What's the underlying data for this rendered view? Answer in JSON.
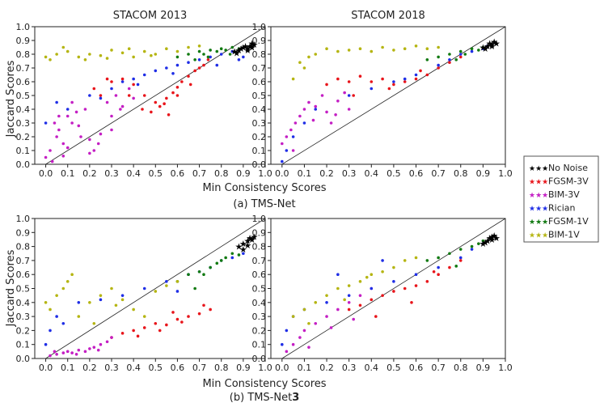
{
  "figure": {
    "caption_a": "(a) TMS-Net",
    "caption_b_prefix": "(b) TMS-Net",
    "caption_b_suffix": "3"
  },
  "legend": {
    "items": [
      {
        "label": "No Noise",
        "color": "#000000"
      },
      {
        "label": "FGSM-3V",
        "color": "#e8151b"
      },
      {
        "label": "BIM-3V",
        "color": "#c41fc4"
      },
      {
        "label": "Rician",
        "color": "#1f2ee6"
      },
      {
        "label": "FGSM-1V",
        "color": "#127a12"
      },
      {
        "label": "BIM-1V",
        "color": "#b5b512"
      }
    ]
  },
  "chart_data": [
    {
      "type": "scatter",
      "panel": "a-left",
      "title": "STACOM 2013",
      "xlabel": "",
      "ylabel": "Jaccard  Scores",
      "xlim": [
        -0.05,
        1.0
      ],
      "ylim": [
        0.0,
        1.0
      ],
      "xticks": [
        "0.0",
        "0.1",
        "0.2",
        "0.3",
        "0.4",
        "0.5",
        "0.6",
        "0.7",
        "0.8",
        "0.9",
        "1.0"
      ],
      "yticks": [
        "0.0",
        "0.1",
        "0.2",
        "0.3",
        "0.4",
        "0.5",
        "0.6",
        "0.7",
        "0.8",
        "0.9",
        "1.0"
      ],
      "diagonal": true,
      "series": [
        {
          "name": "No Noise",
          "x": [
            0.86,
            0.88,
            0.9,
            0.91,
            0.92,
            0.93,
            0.94,
            0.95,
            0.89,
            0.92,
            0.94,
            0.87
          ],
          "y": [
            0.82,
            0.83,
            0.85,
            0.86,
            0.84,
            0.86,
            0.88,
            0.87,
            0.84,
            0.83,
            0.85,
            0.81
          ]
        },
        {
          "name": "FGSM-3V",
          "x": [
            0.22,
            0.3,
            0.35,
            0.4,
            0.45,
            0.5,
            0.52,
            0.55,
            0.58,
            0.6,
            0.62,
            0.65,
            0.68,
            0.7,
            0.72,
            0.48,
            0.44,
            0.38,
            0.28,
            0.25,
            0.56,
            0.6,
            0.66,
            0.74,
            0.54
          ],
          "y": [
            0.55,
            0.6,
            0.62,
            0.58,
            0.5,
            0.45,
            0.42,
            0.48,
            0.52,
            0.56,
            0.6,
            0.64,
            0.68,
            0.7,
            0.72,
            0.38,
            0.4,
            0.5,
            0.62,
            0.5,
            0.36,
            0.5,
            0.58,
            0.76,
            0.44
          ]
        },
        {
          "name": "BIM-3V",
          "x": [
            0.0,
            0.02,
            0.03,
            0.05,
            0.06,
            0.08,
            0.1,
            0.12,
            0.15,
            0.18,
            0.2,
            0.22,
            0.25,
            0.28,
            0.3,
            0.32,
            0.35,
            0.38,
            0.4,
            0.04,
            0.1,
            0.14,
            0.2,
            0.24,
            0.3,
            0.34,
            0.12,
            0.08,
            0.16,
            0.06
          ],
          "y": [
            0.05,
            0.1,
            0.02,
            0.2,
            0.25,
            0.15,
            0.35,
            0.3,
            0.28,
            0.4,
            0.18,
            0.1,
            0.22,
            0.45,
            0.35,
            0.5,
            0.42,
            0.55,
            0.48,
            0.3,
            0.12,
            0.38,
            0.08,
            0.15,
            0.25,
            0.4,
            0.45,
            0.06,
            0.2,
            0.35
          ]
        },
        {
          "name": "Rician",
          "x": [
            0.0,
            0.05,
            0.1,
            0.2,
            0.3,
            0.35,
            0.4,
            0.45,
            0.5,
            0.55,
            0.6,
            0.65,
            0.7,
            0.75,
            0.8,
            0.85,
            0.9,
            0.25,
            0.42,
            0.58,
            0.78,
            0.88
          ],
          "y": [
            0.3,
            0.45,
            0.4,
            0.5,
            0.55,
            0.6,
            0.62,
            0.65,
            0.68,
            0.7,
            0.72,
            0.74,
            0.76,
            0.78,
            0.8,
            0.82,
            0.78,
            0.48,
            0.58,
            0.66,
            0.72,
            0.76
          ]
        },
        {
          "name": "FGSM-1V",
          "x": [
            0.6,
            0.65,
            0.7,
            0.72,
            0.75,
            0.78,
            0.8,
            0.82,
            0.85,
            0.88,
            0.68,
            0.74,
            0.84
          ],
          "y": [
            0.78,
            0.8,
            0.82,
            0.8,
            0.83,
            0.82,
            0.84,
            0.83,
            0.85,
            0.84,
            0.76,
            0.78,
            0.8
          ]
        },
        {
          "name": "BIM-1V",
          "x": [
            0.0,
            0.02,
            0.05,
            0.1,
            0.15,
            0.2,
            0.25,
            0.3,
            0.35,
            0.4,
            0.45,
            0.5,
            0.55,
            0.6,
            0.65,
            0.7,
            0.08,
            0.18,
            0.28,
            0.38,
            0.48
          ],
          "y": [
            0.78,
            0.76,
            0.8,
            0.82,
            0.78,
            0.8,
            0.79,
            0.83,
            0.81,
            0.78,
            0.82,
            0.8,
            0.84,
            0.82,
            0.85,
            0.86,
            0.85,
            0.76,
            0.77,
            0.84,
            0.79
          ]
        }
      ]
    },
    {
      "type": "scatter",
      "panel": "a-right",
      "title": "STACOM 2018",
      "xlim": [
        -0.05,
        1.0
      ],
      "ylim": [
        0.0,
        1.0
      ],
      "xticks": [
        "0.0",
        "0.1",
        "0.2",
        "0.3",
        "0.4",
        "0.5",
        "0.6",
        "0.7",
        "0.8",
        "0.9",
        "1.0"
      ],
      "yticks": [
        "0.0",
        "0.1",
        "0.2",
        "0.3",
        "0.4",
        "0.5",
        "0.6",
        "0.7",
        "0.8",
        "0.9",
        "1.0"
      ],
      "diagonal": true,
      "series": [
        {
          "name": "No Noise",
          "x": [
            0.9,
            0.92,
            0.93,
            0.94,
            0.95,
            0.96,
            0.91,
            0.94
          ],
          "y": [
            0.85,
            0.86,
            0.88,
            0.87,
            0.89,
            0.88,
            0.84,
            0.86
          ]
        },
        {
          "name": "FGSM-3V",
          "x": [
            0.2,
            0.25,
            0.3,
            0.35,
            0.4,
            0.45,
            0.5,
            0.55,
            0.6,
            0.65,
            0.7,
            0.75,
            0.8,
            0.32,
            0.48,
            0.62
          ],
          "y": [
            0.58,
            0.62,
            0.6,
            0.64,
            0.6,
            0.62,
            0.58,
            0.6,
            0.62,
            0.65,
            0.7,
            0.74,
            0.78,
            0.5,
            0.55,
            0.68
          ]
        },
        {
          "name": "BIM-3V",
          "x": [
            0.0,
            0.02,
            0.04,
            0.06,
            0.08,
            0.1,
            0.12,
            0.15,
            0.18,
            0.2,
            0.22,
            0.25,
            0.28,
            0.3,
            0.05,
            0.14,
            0.24
          ],
          "y": [
            0.15,
            0.2,
            0.25,
            0.3,
            0.35,
            0.4,
            0.45,
            0.42,
            0.5,
            0.38,
            0.3,
            0.46,
            0.52,
            0.4,
            0.1,
            0.32,
            0.36
          ]
        },
        {
          "name": "Rician",
          "x": [
            0.0,
            0.02,
            0.05,
            0.1,
            0.15,
            0.3,
            0.4,
            0.5,
            0.6,
            0.7,
            0.8,
            0.85,
            0.9,
            0.92,
            0.55,
            0.75
          ],
          "y": [
            0.02,
            0.1,
            0.2,
            0.3,
            0.4,
            0.5,
            0.55,
            0.6,
            0.65,
            0.72,
            0.8,
            0.82,
            0.84,
            0.86,
            0.62,
            0.76
          ]
        },
        {
          "name": "FGSM-1V",
          "x": [
            0.65,
            0.7,
            0.75,
            0.8,
            0.85,
            0.88,
            0.9,
            0.78,
            0.82
          ],
          "y": [
            0.76,
            0.78,
            0.8,
            0.82,
            0.84,
            0.83,
            0.85,
            0.76,
            0.8
          ]
        },
        {
          "name": "BIM-1V",
          "x": [
            0.05,
            0.1,
            0.12,
            0.15,
            0.2,
            0.25,
            0.3,
            0.35,
            0.4,
            0.45,
            0.5,
            0.55,
            0.6,
            0.65,
            0.7,
            0.08
          ],
          "y": [
            0.62,
            0.7,
            0.78,
            0.8,
            0.84,
            0.82,
            0.83,
            0.84,
            0.82,
            0.85,
            0.83,
            0.84,
            0.86,
            0.84,
            0.85,
            0.74
          ]
        }
      ]
    },
    {
      "type": "scatter",
      "panel": "b-left",
      "title": "",
      "xlim": [
        -0.05,
        1.0
      ],
      "ylim": [
        0.0,
        1.0
      ],
      "xticks": [
        "0.0",
        "0.1",
        "0.2",
        "0.3",
        "0.4",
        "0.5",
        "0.6",
        "0.7",
        "0.8",
        "0.9",
        "1.0"
      ],
      "yticks": [
        "0.0",
        "0.1",
        "0.2",
        "0.3",
        "0.4",
        "0.5",
        "0.6",
        "0.7",
        "0.8",
        "0.9",
        "1.0"
      ],
      "diagonal": true,
      "series": [
        {
          "name": "No Noise",
          "x": [
            0.88,
            0.9,
            0.92,
            0.93,
            0.94,
            0.95,
            0.9,
            0.92
          ],
          "y": [
            0.8,
            0.82,
            0.84,
            0.86,
            0.85,
            0.87,
            0.78,
            0.81
          ]
        },
        {
          "name": "FGSM-3V",
          "x": [
            0.3,
            0.35,
            0.4,
            0.45,
            0.5,
            0.55,
            0.6,
            0.65,
            0.7,
            0.75,
            0.42,
            0.52,
            0.62,
            0.72,
            0.58
          ],
          "y": [
            0.15,
            0.18,
            0.2,
            0.22,
            0.25,
            0.24,
            0.28,
            0.3,
            0.32,
            0.35,
            0.16,
            0.2,
            0.26,
            0.38,
            0.33
          ]
        },
        {
          "name": "BIM-3V",
          "x": [
            0.02,
            0.05,
            0.08,
            0.1,
            0.12,
            0.15,
            0.18,
            0.2,
            0.22,
            0.25,
            0.28,
            0.3,
            0.04,
            0.14,
            0.24
          ],
          "y": [
            0.02,
            0.03,
            0.04,
            0.05,
            0.04,
            0.06,
            0.05,
            0.07,
            0.08,
            0.1,
            0.12,
            0.15,
            0.05,
            0.03,
            0.06
          ]
        },
        {
          "name": "Rician",
          "x": [
            0.0,
            0.02,
            0.05,
            0.08,
            0.15,
            0.25,
            0.35,
            0.45,
            0.55,
            0.65,
            0.7,
            0.75,
            0.8,
            0.85,
            0.9,
            0.6
          ],
          "y": [
            0.1,
            0.2,
            0.3,
            0.25,
            0.4,
            0.42,
            0.45,
            0.5,
            0.55,
            0.6,
            0.62,
            0.65,
            0.7,
            0.72,
            0.75,
            0.48
          ]
        },
        {
          "name": "FGSM-1V",
          "x": [
            0.6,
            0.65,
            0.7,
            0.72,
            0.75,
            0.78,
            0.8,
            0.82,
            0.85,
            0.88,
            0.68
          ],
          "y": [
            0.55,
            0.6,
            0.62,
            0.6,
            0.65,
            0.68,
            0.7,
            0.72,
            0.75,
            0.74,
            0.5
          ]
        },
        {
          "name": "BIM-1V",
          "x": [
            0.0,
            0.02,
            0.05,
            0.08,
            0.1,
            0.15,
            0.2,
            0.25,
            0.3,
            0.35,
            0.4,
            0.45,
            0.5,
            0.55,
            0.6,
            0.12,
            0.22,
            0.32
          ],
          "y": [
            0.4,
            0.35,
            0.45,
            0.5,
            0.55,
            0.3,
            0.4,
            0.45,
            0.5,
            0.42,
            0.35,
            0.3,
            0.48,
            0.52,
            0.55,
            0.6,
            0.25,
            0.38
          ]
        }
      ]
    },
    {
      "type": "scatter",
      "panel": "b-right",
      "title": "",
      "xlim": [
        -0.05,
        1.0
      ],
      "ylim": [
        0.0,
        1.0
      ],
      "xticks": [
        "0.0",
        "0.1",
        "0.2",
        "0.3",
        "0.4",
        "0.5",
        "0.6",
        "0.7",
        "0.8",
        "0.9",
        "1.0"
      ],
      "yticks": [
        "0.0",
        "0.1",
        "0.2",
        "0.3",
        "0.4",
        "0.5",
        "0.6",
        "0.7",
        "0.8",
        "0.9",
        "1.0"
      ],
      "diagonal": true,
      "series": [
        {
          "name": "No Noise",
          "x": [
            0.9,
            0.92,
            0.93,
            0.94,
            0.95,
            0.96,
            0.91,
            0.94
          ],
          "y": [
            0.82,
            0.84,
            0.86,
            0.87,
            0.88,
            0.86,
            0.83,
            0.85
          ]
        },
        {
          "name": "FGSM-3V",
          "x": [
            0.3,
            0.35,
            0.4,
            0.45,
            0.5,
            0.55,
            0.6,
            0.65,
            0.7,
            0.75,
            0.8,
            0.42,
            0.58,
            0.68
          ],
          "y": [
            0.35,
            0.38,
            0.42,
            0.45,
            0.48,
            0.5,
            0.52,
            0.55,
            0.6,
            0.65,
            0.7,
            0.3,
            0.4,
            0.62
          ]
        },
        {
          "name": "BIM-3V",
          "x": [
            0.02,
            0.05,
            0.08,
            0.1,
            0.15,
            0.2,
            0.25,
            0.3,
            0.35,
            0.4,
            0.12,
            0.22,
            0.32
          ],
          "y": [
            0.05,
            0.1,
            0.15,
            0.2,
            0.25,
            0.3,
            0.35,
            0.4,
            0.45,
            0.5,
            0.08,
            0.22,
            0.28
          ]
        },
        {
          "name": "Rician",
          "x": [
            0.0,
            0.02,
            0.05,
            0.1,
            0.2,
            0.3,
            0.4,
            0.5,
            0.6,
            0.7,
            0.8,
            0.85,
            0.9,
            0.25,
            0.45
          ],
          "y": [
            0.1,
            0.2,
            0.3,
            0.35,
            0.4,
            0.45,
            0.5,
            0.55,
            0.6,
            0.65,
            0.72,
            0.78,
            0.82,
            0.6,
            0.7
          ]
        },
        {
          "name": "FGSM-1V",
          "x": [
            0.65,
            0.7,
            0.75,
            0.8,
            0.85,
            0.88,
            0.9,
            0.78
          ],
          "y": [
            0.7,
            0.72,
            0.75,
            0.78,
            0.8,
            0.82,
            0.84,
            0.66
          ]
        },
        {
          "name": "BIM-1V",
          "x": [
            0.05,
            0.1,
            0.15,
            0.2,
            0.25,
            0.3,
            0.35,
            0.4,
            0.45,
            0.5,
            0.55,
            0.6,
            0.12,
            0.28,
            0.38
          ],
          "y": [
            0.3,
            0.35,
            0.4,
            0.45,
            0.5,
            0.52,
            0.55,
            0.6,
            0.62,
            0.65,
            0.7,
            0.72,
            0.25,
            0.42,
            0.58
          ]
        }
      ]
    }
  ],
  "axis_text": {
    "ylabel_top": "Jaccard  Scores",
    "ylabel_bottom": "Jaccard  Scores",
    "xlabel_top": "Min Consistency Scores",
    "xlabel_bottom": "Min Consistency Scores"
  }
}
